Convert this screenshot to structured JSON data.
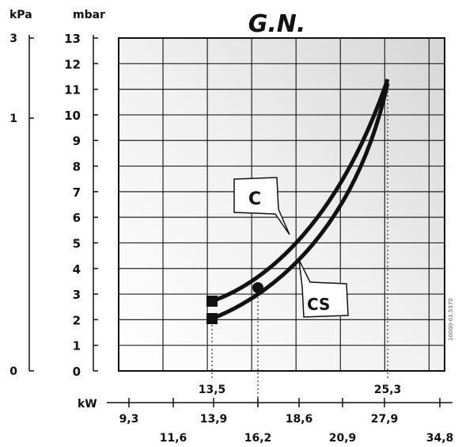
{
  "chart_data": {
    "type": "line",
    "title": "G.N.",
    "y_units_left": "kPa",
    "y_units_mid": "mbar",
    "x_units": "kW",
    "kpa_ticks": [
      "3",
      "1",
      "0"
    ],
    "mbar_ticks": [
      "13",
      "12",
      "11",
      "10",
      "9",
      "8",
      "7",
      "6",
      "5",
      "4",
      "3",
      "2",
      "1",
      "0"
    ],
    "ylim": [
      0,
      13
    ],
    "x_ticks_row1": [
      "13,5",
      "25,3"
    ],
    "x_ticks_row2": [
      "9,3",
      "13,9",
      "18,6",
      "27,9"
    ],
    "x_ticks_row3": [
      "11,6",
      "16,2",
      "20,9",
      "34,8"
    ],
    "xlim": [
      9.3,
      34.8
    ],
    "grid": true,
    "series": [
      {
        "name": "C",
        "x": [
          13.5,
          16.0,
          18.5,
          21.0,
          23.5,
          25.3
        ],
        "y": [
          2.9,
          3.7,
          5.2,
          7.2,
          9.5,
          11.6
        ]
      },
      {
        "name": "CS",
        "x": [
          13.5,
          16.0,
          18.5,
          21.0,
          23.5,
          25.3
        ],
        "y": [
          2.2,
          3.0,
          4.5,
          6.6,
          9.0,
          11.4
        ]
      }
    ],
    "marker_point": {
      "x": 16.2,
      "y": 3.3
    },
    "watermark": "10000-01.5370"
  }
}
